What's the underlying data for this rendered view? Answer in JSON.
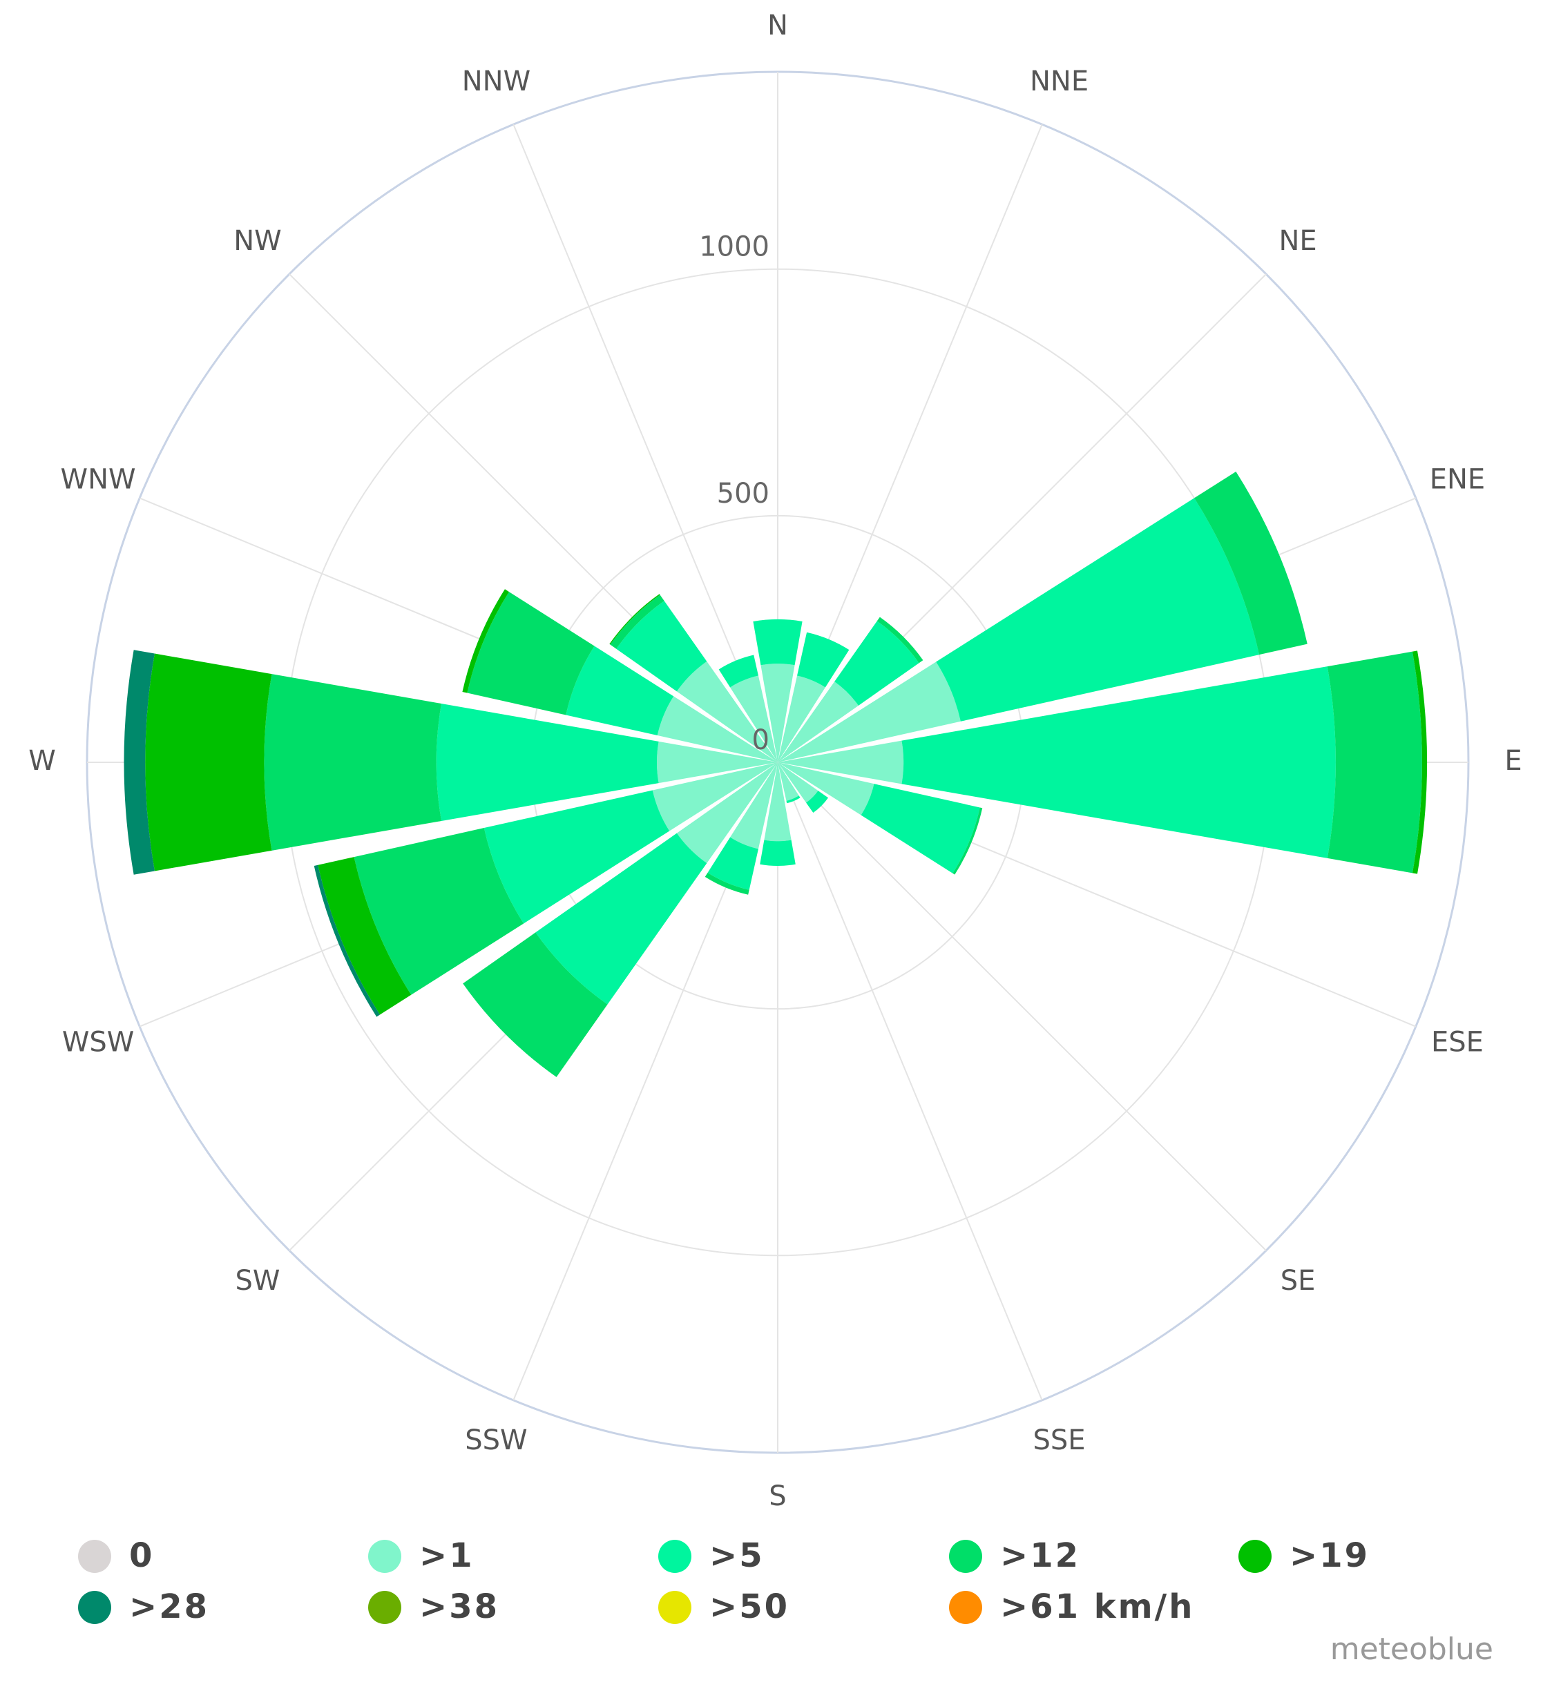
{
  "chart_data": {
    "type": "windrose",
    "categories": [
      "N",
      "NNE",
      "NE",
      "ENE",
      "E",
      "ESE",
      "SE",
      "SSE",
      "S",
      "SSW",
      "SW",
      "WSW",
      "W",
      "WNW",
      "NW",
      "NNW"
    ],
    "ylim": [
      0,
      1400
    ],
    "yticks": [
      0,
      500,
      1000
    ],
    "grid": true,
    "legend": "bottom",
    "source": "meteoblue",
    "series": [
      {
        "name": "0",
        "color": "#d9d5d5",
        "values": [
          0,
          0,
          0,
          0,
          0,
          0,
          0,
          0,
          0,
          0,
          0,
          0,
          0,
          0,
          0,
          0
        ]
      },
      {
        "name": ">1",
        "color": "#80f5cb",
        "values": [
          200,
          180,
          200,
          380,
          255,
          200,
          100,
          80,
          160,
          180,
          250,
          260,
          245,
          250,
          250,
          180
        ]
      },
      {
        "name": ">5",
        "color": "#00f59e",
        "values": [
          90,
          90,
          150,
          620,
          876,
          220,
          25,
          5,
          50,
          85,
          350,
          350,
          447,
          190,
          150,
          43
        ]
      },
      {
        "name": ">12",
        "color": "#00de68",
        "values": [
          0,
          0,
          10,
          100,
          175,
          5,
          0,
          0,
          0,
          10,
          180,
          270,
          349,
          205,
          15,
          0
        ]
      },
      {
        "name": ">19",
        "color": "#00c000",
        "values": [
          0,
          0,
          0,
          0,
          10,
          0,
          0,
          0,
          0,
          0,
          0,
          75,
          241,
          10,
          2,
          0
        ]
      },
      {
        "name": ">28",
        "color": "#00896b",
        "values": [
          0,
          0,
          0,
          0,
          0,
          0,
          0,
          0,
          0,
          0,
          0,
          8,
          43,
          0,
          0,
          0
        ]
      },
      {
        "name": ">38",
        "color": "#6aae00",
        "values": [
          0,
          0,
          0,
          0,
          0,
          0,
          0,
          0,
          0,
          0,
          0,
          0,
          0,
          0,
          0,
          0
        ]
      },
      {
        "name": ">50",
        "color": "#e6e600",
        "values": [
          0,
          0,
          0,
          0,
          0,
          0,
          0,
          0,
          0,
          0,
          0,
          0,
          0,
          0,
          0,
          0
        ]
      },
      {
        "name": ">61 km/h",
        "color": "#ff8c00",
        "values": [
          0,
          0,
          0,
          0,
          0,
          0,
          0,
          0,
          0,
          0,
          0,
          0,
          0,
          0,
          0,
          0
        ]
      }
    ]
  }
}
